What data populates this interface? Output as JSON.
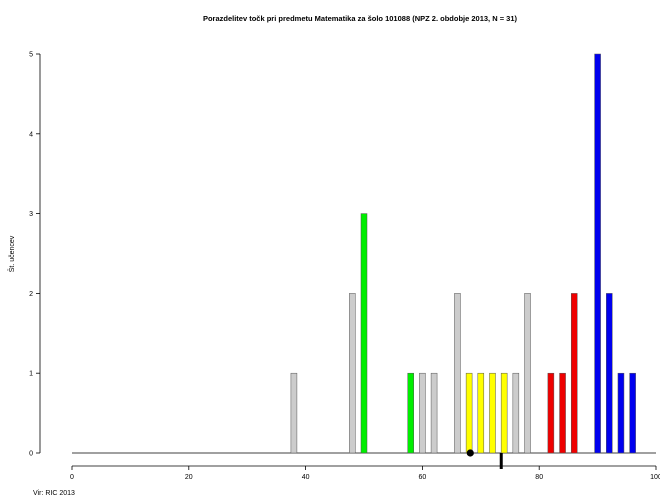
{
  "chart_data": {
    "type": "bar",
    "title": "Porazdelitev točk pri predmetu Matematika za šolo 101088 (NPZ 2. obdobje 2013, N = 31)",
    "ylabel": "Št. učencev",
    "xlabel": "",
    "xlim": [
      0,
      100
    ],
    "ylim": [
      0,
      5
    ],
    "x_ticks": [
      0,
      20,
      40,
      60,
      80,
      100
    ],
    "y_ticks": [
      0,
      1,
      2,
      3,
      4,
      5
    ],
    "grid": false,
    "colors": {
      "gray": "#cccccc",
      "green": "#00ee00",
      "yellow": "#ffff00",
      "red": "#ee0000",
      "blue": "#0000ee",
      "outline": "#555555"
    },
    "bars": [
      {
        "x": 38,
        "value": 1,
        "color": "gray"
      },
      {
        "x": 48,
        "value": 2,
        "color": "gray"
      },
      {
        "x": 50,
        "value": 3,
        "color": "green"
      },
      {
        "x": 58,
        "value": 1,
        "color": "green"
      },
      {
        "x": 60,
        "value": 1,
        "color": "gray"
      },
      {
        "x": 62,
        "value": 1,
        "color": "gray"
      },
      {
        "x": 66,
        "value": 2,
        "color": "gray"
      },
      {
        "x": 68,
        "value": 1,
        "color": "yellow"
      },
      {
        "x": 70,
        "value": 1,
        "color": "yellow"
      },
      {
        "x": 72,
        "value": 1,
        "color": "yellow"
      },
      {
        "x": 74,
        "value": 1,
        "color": "yellow"
      },
      {
        "x": 76,
        "value": 1,
        "color": "gray"
      },
      {
        "x": 78,
        "value": 2,
        "color": "gray"
      },
      {
        "x": 82,
        "value": 1,
        "color": "red"
      },
      {
        "x": 84,
        "value": 1,
        "color": "red"
      },
      {
        "x": 86,
        "value": 2,
        "color": "red"
      },
      {
        "x": 90,
        "value": 5,
        "color": "blue"
      },
      {
        "x": 92,
        "value": 2,
        "color": "blue"
      },
      {
        "x": 94,
        "value": 1,
        "color": "blue"
      },
      {
        "x": 96,
        "value": 1,
        "color": "blue"
      }
    ],
    "markers": {
      "point_x": 68.2,
      "line_x": 73.5
    },
    "source": "Vir: RIC 2013"
  }
}
